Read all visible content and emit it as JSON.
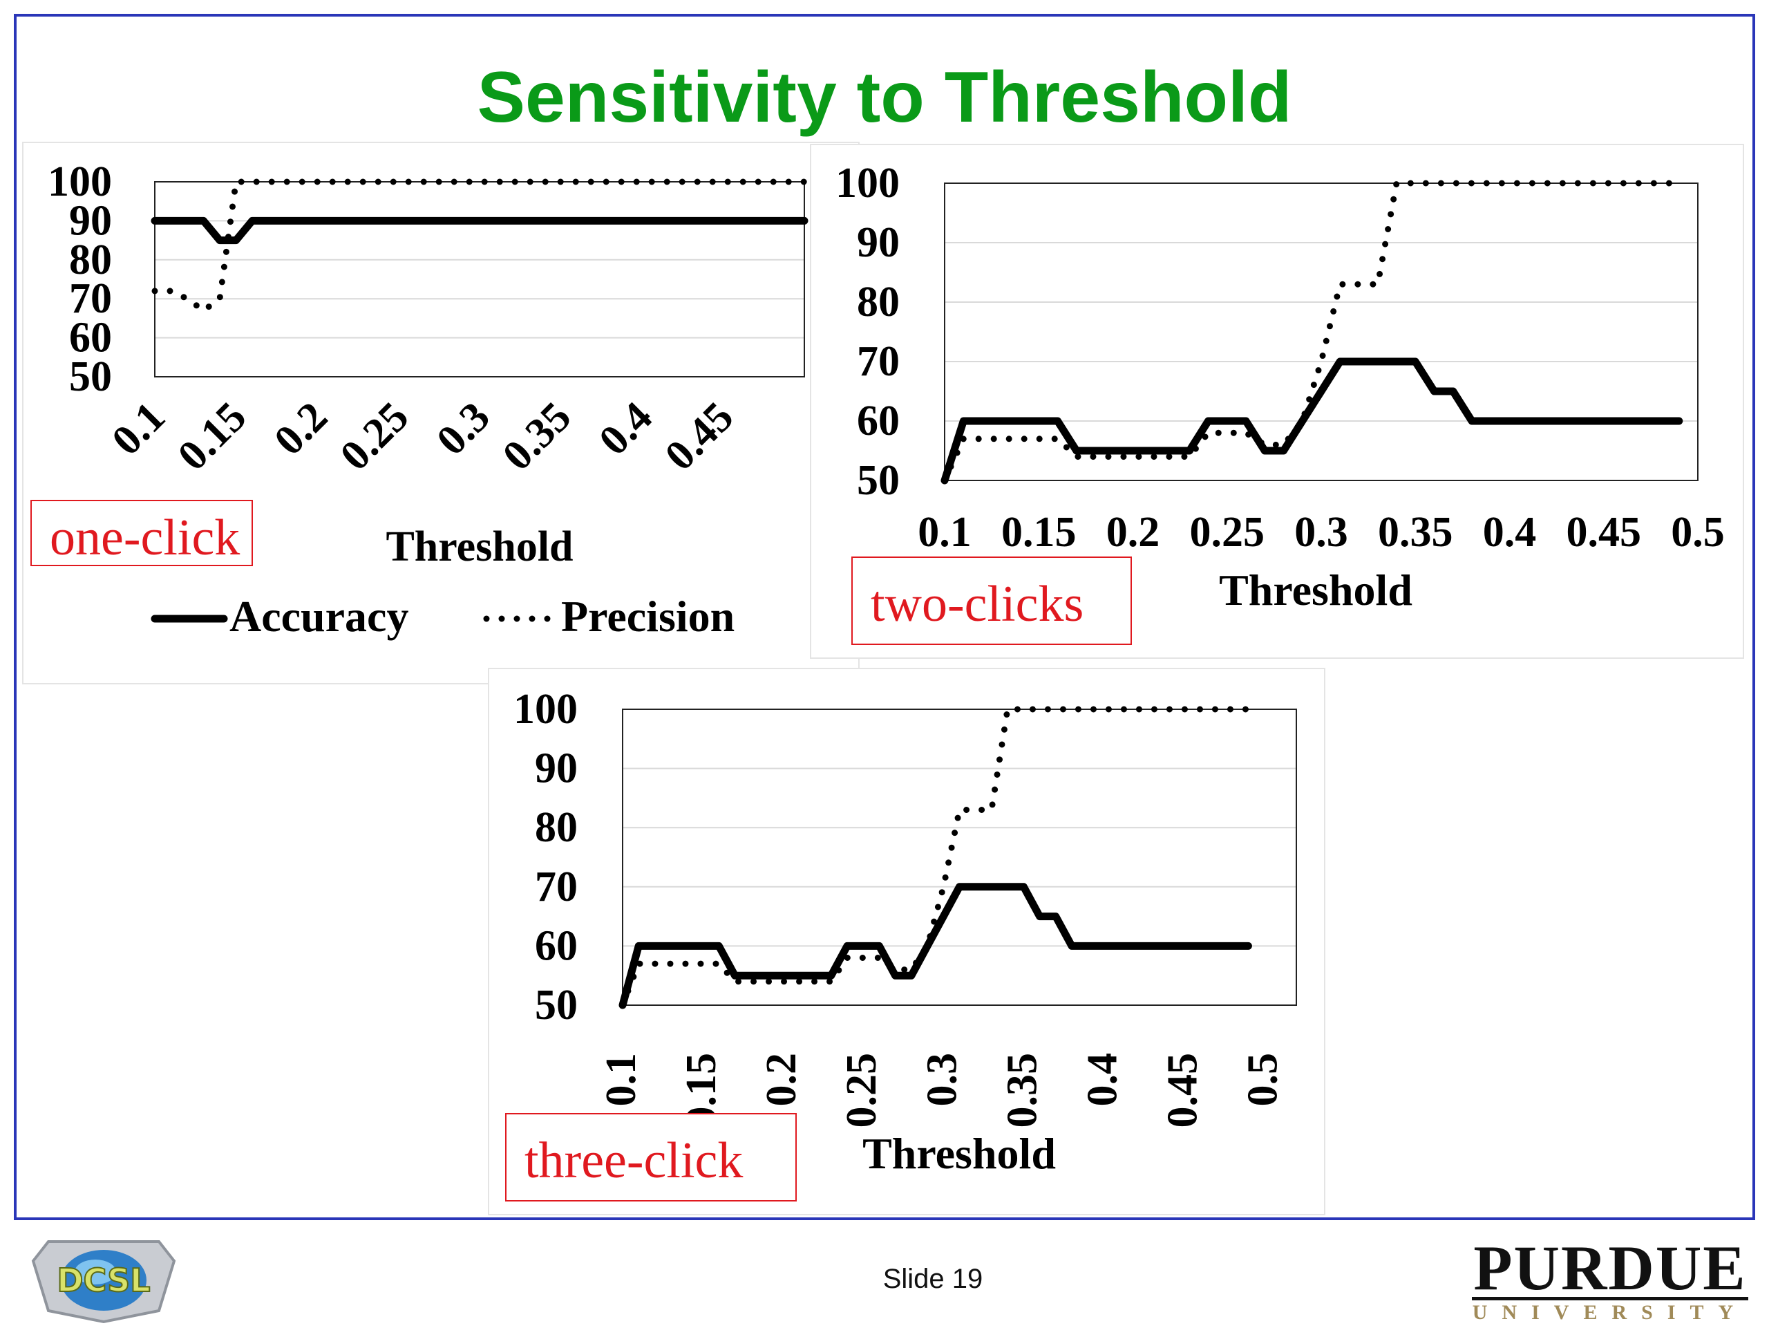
{
  "slide": {
    "title": "Sensitivity to Threshold",
    "slide_number": "Slide 19",
    "logo_left": "DCSL",
    "logo_right": "PURDUE",
    "logo_right_sub": "UNIVERSITY"
  },
  "colors": {
    "title": "#0a9a18",
    "frame": "#2a36b8",
    "caption": "#e0191f",
    "series": "#000000"
  },
  "chart_data": [
    {
      "type": "line",
      "caption": "one-click",
      "xlabel": "Threshold",
      "ylabel": "",
      "ylim": [
        50,
        100
      ],
      "y_ticks": [
        "100",
        "90",
        "80",
        "70",
        "60",
        "50"
      ],
      "x_tick_labels": [
        "0.1",
        "0.15",
        "0.2",
        "0.25",
        "0.3",
        "0.35",
        "0.4",
        "0.45"
      ],
      "x": [
        0.1,
        0.11,
        0.12,
        0.13,
        0.14,
        0.15,
        0.16,
        0.17,
        0.18,
        0.19,
        0.2,
        0.21,
        0.22,
        0.23,
        0.24,
        0.25,
        0.26,
        0.27,
        0.28,
        0.29,
        0.3,
        0.31,
        0.32,
        0.33,
        0.34,
        0.35,
        0.36,
        0.37,
        0.38,
        0.39,
        0.4,
        0.41,
        0.42,
        0.43,
        0.44,
        0.45,
        0.46,
        0.47,
        0.48,
        0.49,
        0.5
      ],
      "grid": true,
      "legend": "bottom",
      "series": [
        {
          "name": "Accuracy",
          "style": "solid",
          "values": [
            90,
            90,
            90,
            90,
            85,
            85,
            90,
            90,
            90,
            90,
            90,
            90,
            90,
            90,
            90,
            90,
            90,
            90,
            90,
            90,
            90,
            90,
            90,
            90,
            90,
            90,
            90,
            90,
            90,
            90,
            90,
            90,
            90,
            90,
            90,
            90,
            90,
            90,
            90,
            90,
            90
          ]
        },
        {
          "name": "Precision",
          "style": "dotted",
          "values": [
            72,
            72,
            70,
            67,
            70,
            100,
            100,
            100,
            100,
            100,
            100,
            100,
            100,
            100,
            100,
            100,
            100,
            100,
            100,
            100,
            100,
            100,
            100,
            100,
            100,
            100,
            100,
            100,
            100,
            100,
            100,
            100,
            100,
            100,
            100,
            100,
            100,
            100,
            100,
            100,
            100
          ]
        }
      ]
    },
    {
      "type": "line",
      "caption": "two-clicks",
      "xlabel": "Threshold",
      "ylabel": "",
      "ylim": [
        50,
        100
      ],
      "y_ticks": [
        "100",
        "90",
        "80",
        "70",
        "60",
        "50"
      ],
      "x_tick_labels": [
        "0.1",
        "0.15",
        "0.2",
        "0.25",
        "0.3",
        "0.35",
        "0.4",
        "0.45",
        "0.5"
      ],
      "x": [
        0.1,
        0.11,
        0.12,
        0.13,
        0.14,
        0.15,
        0.16,
        0.17,
        0.18,
        0.19,
        0.2,
        0.21,
        0.22,
        0.23,
        0.24,
        0.25,
        0.26,
        0.27,
        0.28,
        0.29,
        0.3,
        0.31,
        0.32,
        0.33,
        0.34,
        0.35,
        0.36,
        0.37,
        0.38,
        0.39,
        0.4,
        0.41,
        0.42,
        0.43,
        0.44,
        0.45,
        0.46,
        0.47,
        0.48,
        0.49
      ],
      "grid": true,
      "legend": "none",
      "series": [
        {
          "name": "Accuracy",
          "style": "solid",
          "values": [
            50,
            60,
            60,
            60,
            60,
            60,
            60,
            55,
            55,
            55,
            55,
            55,
            55,
            55,
            60,
            60,
            60,
            55,
            55,
            60,
            65,
            70,
            70,
            70,
            70,
            70,
            65,
            65,
            60,
            60,
            60,
            60,
            60,
            60,
            60,
            60,
            60,
            60,
            60,
            60
          ]
        },
        {
          "name": "Precision",
          "style": "dotted",
          "values": [
            50,
            57,
            57,
            57,
            57,
            57,
            57,
            54,
            54,
            54,
            54,
            54,
            54,
            54,
            58,
            58,
            58,
            56,
            56,
            60,
            70,
            83,
            83,
            83,
            100,
            100,
            100,
            100,
            100,
            100,
            100,
            100,
            100,
            100,
            100,
            100,
            100,
            100,
            100,
            100
          ]
        }
      ]
    },
    {
      "type": "line",
      "caption": "three-click",
      "xlabel": "Threshold",
      "ylabel": "",
      "ylim": [
        50,
        100
      ],
      "y_ticks": [
        "100",
        "90",
        "80",
        "70",
        "60",
        "50"
      ],
      "x_tick_labels": [
        "0.1",
        "0.15",
        "0.2",
        "0.25",
        "0.3",
        "0.35",
        "0.4",
        "0.45",
        "0.5"
      ],
      "x": [
        0.1,
        0.11,
        0.12,
        0.13,
        0.14,
        0.15,
        0.16,
        0.17,
        0.18,
        0.19,
        0.2,
        0.21,
        0.22,
        0.23,
        0.24,
        0.25,
        0.26,
        0.27,
        0.28,
        0.29,
        0.3,
        0.31,
        0.32,
        0.33,
        0.34,
        0.35,
        0.36,
        0.37,
        0.38,
        0.39,
        0.4,
        0.41,
        0.42,
        0.43,
        0.44,
        0.45,
        0.46,
        0.47,
        0.48,
        0.49
      ],
      "grid": true,
      "legend": "none",
      "series": [
        {
          "name": "Accuracy",
          "style": "solid",
          "values": [
            50,
            60,
            60,
            60,
            60,
            60,
            60,
            55,
            55,
            55,
            55,
            55,
            55,
            55,
            60,
            60,
            60,
            55,
            55,
            60,
            65,
            70,
            70,
            70,
            70,
            70,
            65,
            65,
            60,
            60,
            60,
            60,
            60,
            60,
            60,
            60,
            60,
            60,
            60,
            60
          ]
        },
        {
          "name": "Precision",
          "style": "dotted",
          "values": [
            50,
            57,
            57,
            57,
            57,
            57,
            57,
            54,
            54,
            54,
            54,
            54,
            54,
            54,
            58,
            58,
            58,
            56,
            56,
            60,
            70,
            83,
            83,
            83,
            100,
            100,
            100,
            100,
            100,
            100,
            100,
            100,
            100,
            100,
            100,
            100,
            100,
            100,
            100,
            100
          ]
        }
      ]
    }
  ]
}
